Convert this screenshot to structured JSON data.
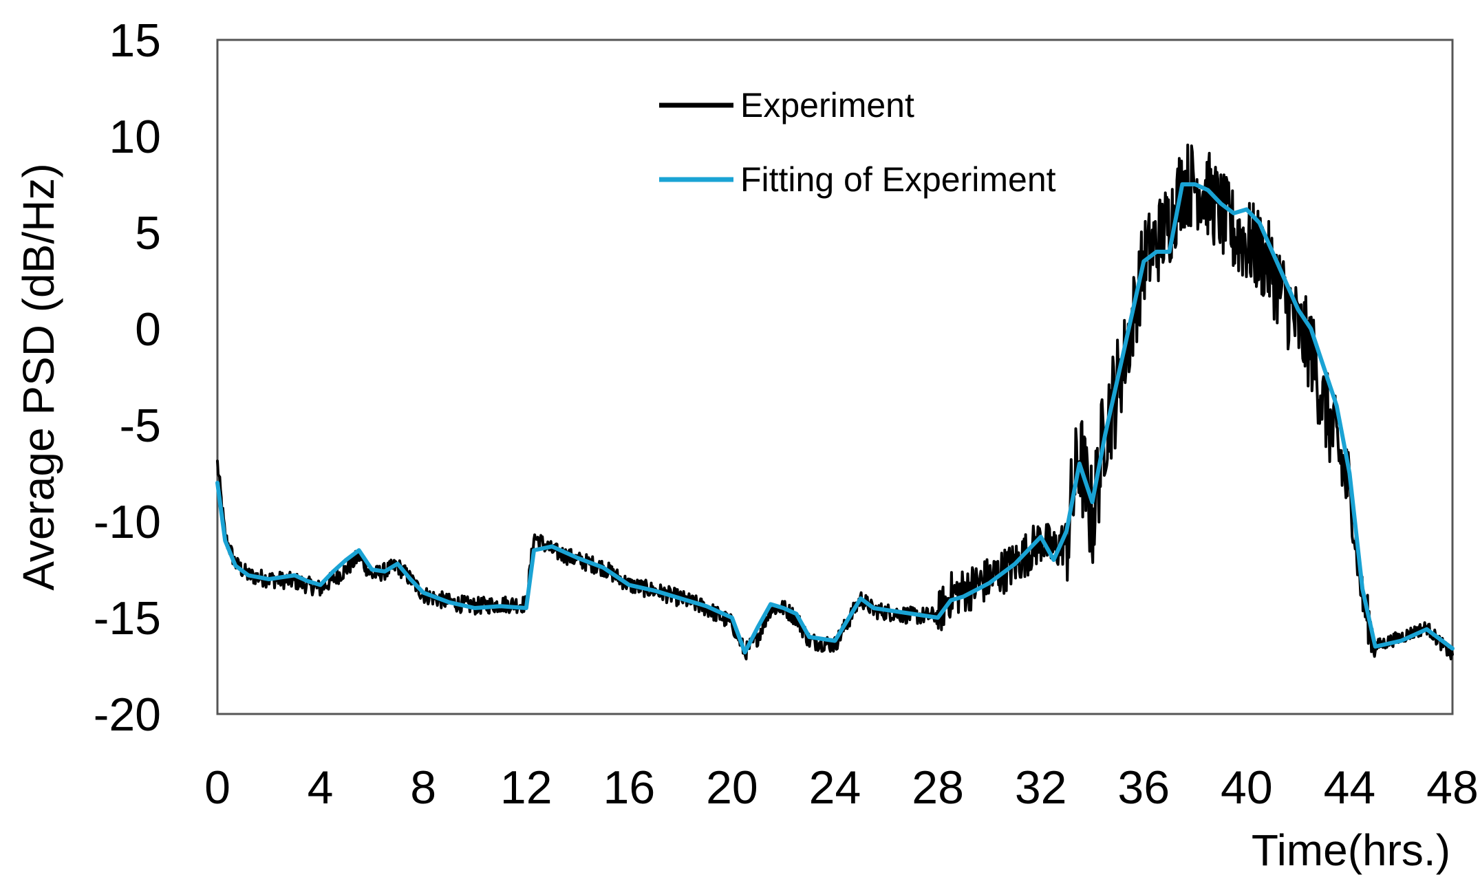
{
  "chart_data": {
    "type": "line",
    "title": "",
    "xlabel": "Time(hrs.)",
    "ylabel": "Average PSD (dB/Hz)",
    "xlim": [
      0,
      48
    ],
    "ylim": [
      -20,
      15
    ],
    "x_ticks": [
      0,
      4,
      8,
      12,
      16,
      20,
      24,
      28,
      32,
      36,
      40,
      44,
      48
    ],
    "y_ticks": [
      15,
      10,
      5,
      0,
      -5,
      -10,
      -15,
      -20
    ],
    "x_tick_labels": [
      "0",
      "4",
      "8",
      "12",
      "16",
      "20",
      "24",
      "28",
      "32",
      "36",
      "40",
      "44",
      "48"
    ],
    "y_tick_labels": [
      "15",
      "10",
      "5",
      "0",
      "-5",
      "-10",
      "-15",
      "-20"
    ],
    "grid": false,
    "legend_position": "top-center",
    "colors": {
      "experiment": "#000000",
      "fitting": "#1aa3d4",
      "frame": "#555555"
    },
    "series": [
      {
        "name": "Experiment",
        "color": "#000000",
        "noisy": true,
        "x": [
          0,
          0.3,
          0.7,
          1.2,
          2,
          3,
          3.5,
          4,
          4.5,
          5,
          5.5,
          6,
          6.5,
          7,
          7.5,
          8,
          9,
          10,
          11,
          12,
          12.3,
          13,
          14,
          15,
          16,
          17,
          18,
          19,
          20,
          20.5,
          21,
          21.5,
          22,
          22.5,
          23,
          24,
          25,
          25.5,
          26,
          27,
          28,
          28.5,
          29,
          30,
          31,
          32,
          32.5,
          33,
          33.5,
          34,
          34.5,
          35,
          35.5,
          36,
          36.5,
          37,
          37.5,
          38,
          38.5,
          39,
          39.5,
          40,
          40.5,
          41,
          41.5,
          42,
          42.5,
          43,
          43.5,
          44,
          44.5,
          45,
          46,
          47,
          48
        ],
        "y": [
          -7,
          -10.8,
          -12.2,
          -12.8,
          -13,
          -13.1,
          -13.3,
          -13.5,
          -13,
          -12.5,
          -11.8,
          -12.8,
          -12.6,
          -12.3,
          -13,
          -13.8,
          -14.2,
          -14.4,
          -14.3,
          -14.3,
          -10.8,
          -11.5,
          -12,
          -12.4,
          -13.3,
          -13.6,
          -14,
          -14.5,
          -15.3,
          -16.8,
          -16,
          -14.5,
          -14.5,
          -15,
          -16.2,
          -16.4,
          -14,
          -14.6,
          -14.7,
          -14.9,
          -14.9,
          -13.8,
          -13.6,
          -13,
          -12.2,
          -11,
          -11.5,
          -11,
          -6.5,
          -10,
          -5,
          -3,
          0,
          3.5,
          4.5,
          5.5,
          7.5,
          7.5,
          7,
          6,
          5,
          4.5,
          4,
          3,
          1.5,
          0,
          -1,
          -4,
          -6,
          -8.5,
          -14,
          -16.5,
          -16,
          -15.5,
          -17
        ]
      },
      {
        "name": "Fitting of Experiment",
        "color": "#1aa3d4",
        "noisy": false,
        "x": [
          0,
          0.3,
          0.7,
          1.2,
          2,
          3,
          3.5,
          4,
          4.5,
          5,
          5.5,
          6,
          6.5,
          7,
          7.5,
          8,
          9,
          10,
          11,
          12,
          12.3,
          13,
          14,
          15,
          16,
          17,
          18,
          19,
          20,
          20.5,
          21,
          21.5,
          22,
          22.5,
          23,
          24,
          25,
          25.5,
          26,
          27,
          28,
          28.5,
          29,
          30,
          31,
          32,
          32.5,
          33,
          33.5,
          34,
          34.5,
          35,
          35.5,
          36,
          36.5,
          37,
          37.5,
          38,
          38.5,
          39,
          39.5,
          40,
          40.5,
          41,
          41.5,
          42,
          42.5,
          43,
          43.5,
          44,
          44.5,
          45,
          46,
          47,
          48
        ],
        "y": [
          -8,
          -11,
          -12.3,
          -12.8,
          -13,
          -12.8,
          -13.1,
          -13.3,
          -12.6,
          -12,
          -11.5,
          -12.5,
          -12.6,
          -12.2,
          -13,
          -13.7,
          -14.2,
          -14.5,
          -14.4,
          -14.5,
          -11.5,
          -11.3,
          -11.9,
          -12.4,
          -13.3,
          -13.6,
          -14,
          -14.4,
          -15,
          -16.8,
          -15.5,
          -14.3,
          -14.5,
          -14.8,
          -16,
          -16.2,
          -14,
          -14.5,
          -14.6,
          -14.8,
          -15,
          -14.1,
          -13.9,
          -13.2,
          -12.2,
          -10.8,
          -12,
          -10.5,
          -7,
          -9,
          -5.5,
          -2.5,
          0.5,
          3.5,
          4,
          4,
          7.5,
          7.5,
          7.2,
          6.5,
          6,
          6.2,
          5.5,
          4,
          2.5,
          1,
          0,
          -2,
          -4,
          -7.5,
          -13.5,
          -16.5,
          -16.2,
          -15.6,
          -16.6
        ]
      }
    ]
  }
}
